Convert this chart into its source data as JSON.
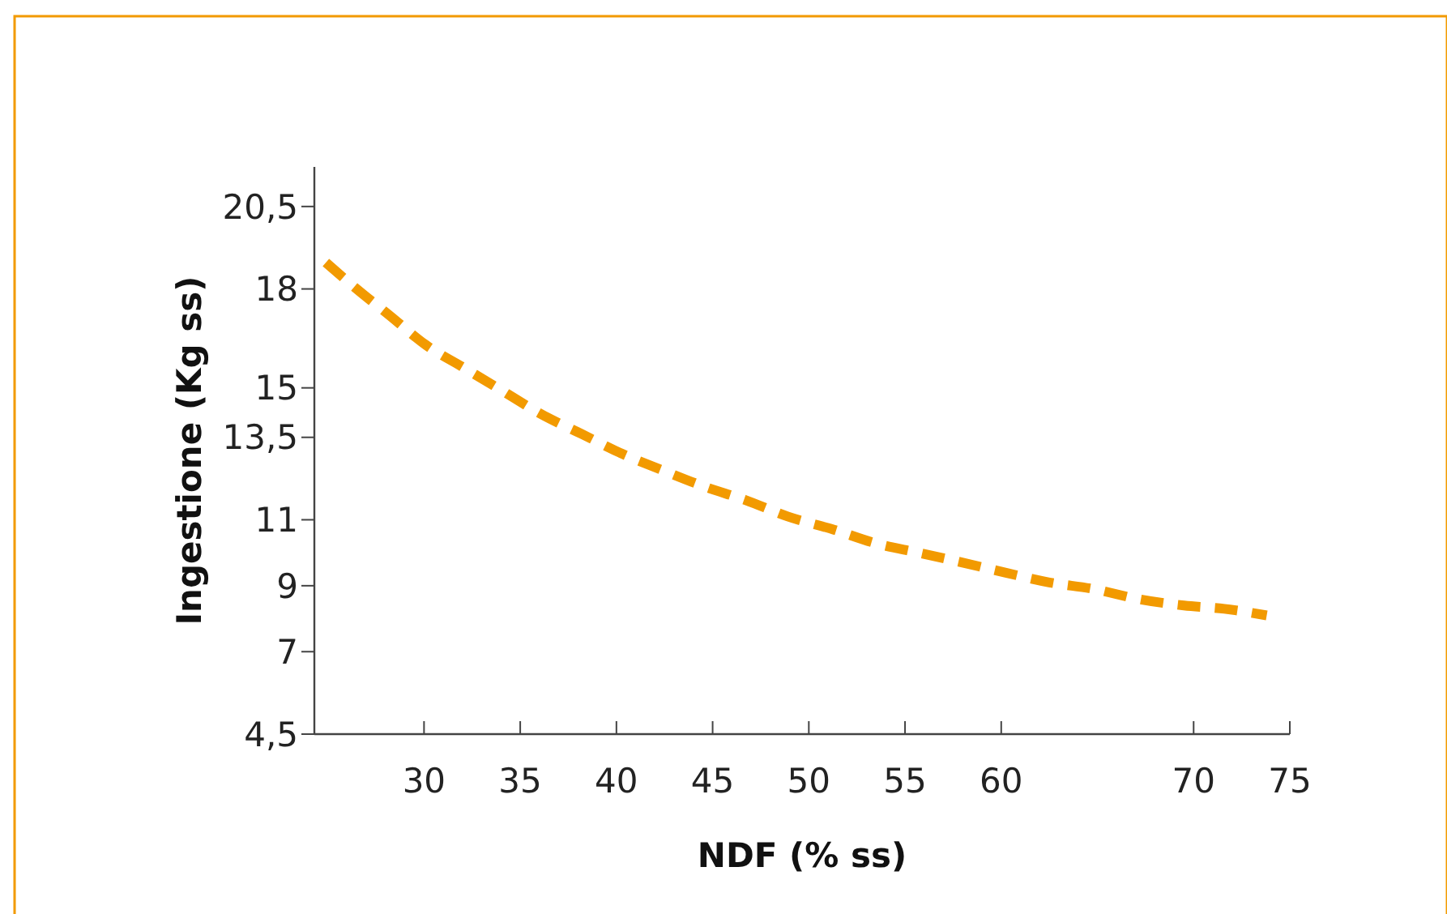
{
  "chart_data": {
    "type": "line",
    "xlabel": "NDF (% ss)",
    "ylabel": "Ingestione (Kg ss)",
    "x": [
      24.9,
      26.5,
      28.2,
      30.1,
      32.1,
      34.1,
      36.1,
      38.2,
      40.3,
      42.4,
      44.6,
      46.7,
      48.9,
      51.3,
      53.4,
      55.7,
      58.0,
      60.2,
      62.5,
      64.8,
      67.1,
      69.5,
      71.6,
      73.8
    ],
    "series": [
      {
        "color": "#f29a00",
        "values": [
          18.8,
          18.0,
          17.2,
          16.3,
          15.6,
          14.9,
          14.2,
          13.6,
          13.0,
          12.5,
          12.0,
          11.6,
          11.1,
          10.7,
          10.3,
          10.0,
          9.7,
          9.4,
          9.1,
          8.9,
          8.6,
          8.4,
          8.3,
          8.1
        ]
      }
    ],
    "xlim": [
      24.3,
      75
    ],
    "xticks": [
      30,
      35,
      40,
      45,
      50,
      55,
      60,
      70,
      75
    ],
    "ylim": [
      4.5,
      21.7
    ],
    "yticks": [
      {
        "value": 4.5,
        "label": "4,5"
      },
      7,
      9,
      11,
      {
        "value": 13.5,
        "label": "13,5"
      },
      15,
      18,
      {
        "value": 20.5,
        "label": "20,5"
      }
    ],
    "marker": "none",
    "line_style": "dashed"
  }
}
